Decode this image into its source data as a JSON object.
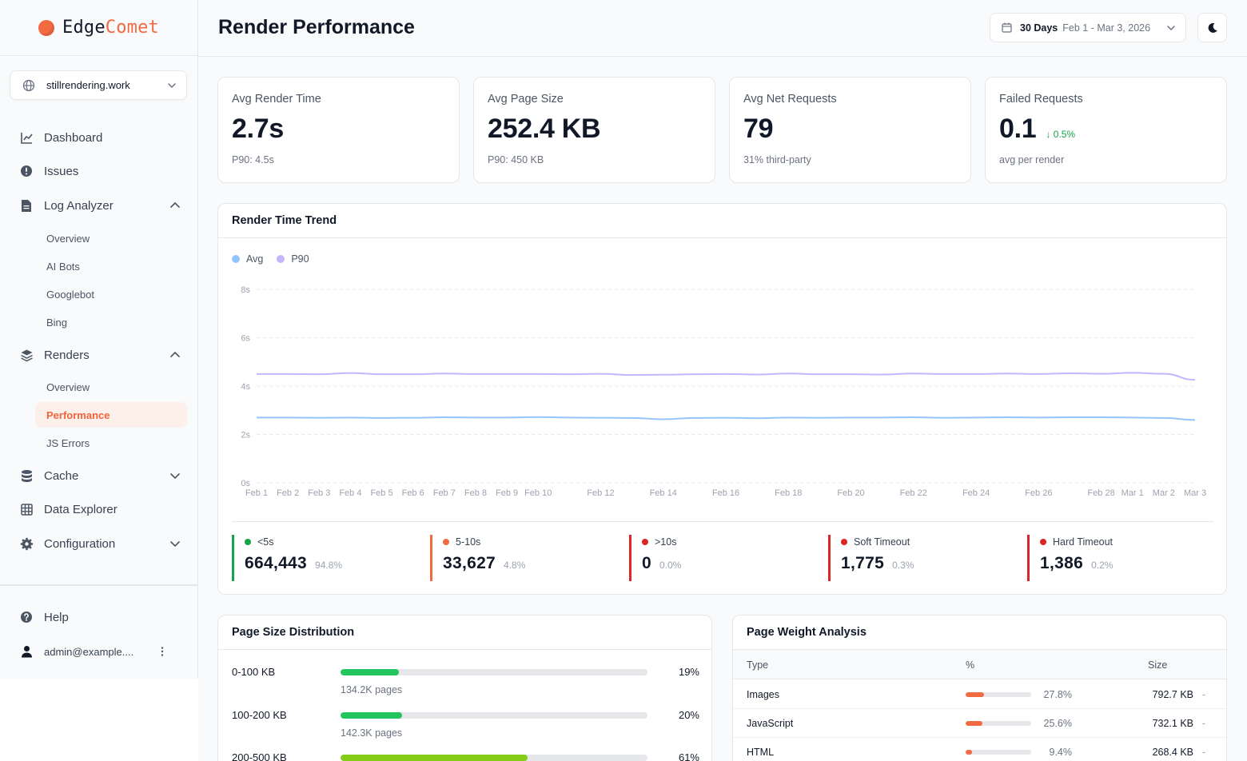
{
  "brand": {
    "part1": "Edge",
    "part2": "Comet"
  },
  "site_selector": {
    "value": "stillrendering.work"
  },
  "nav": {
    "dashboard": "Dashboard",
    "issues": "Issues",
    "log_analyzer": "Log Analyzer",
    "log_sub": [
      "Overview",
      "AI Bots",
      "Googlebot",
      "Bing"
    ],
    "renders": "Renders",
    "renders_sub": [
      "Overview",
      "Performance",
      "JS Errors"
    ],
    "cache": "Cache",
    "data_explorer": "Data Explorer",
    "configuration": "Configuration",
    "help": "Help",
    "user": "admin@example...."
  },
  "header": {
    "title": "Render Performance",
    "date_days": "30 Days",
    "date_range": "Feb 1 - Mar 3, 2026"
  },
  "kpis": [
    {
      "label": "Avg Render Time",
      "value": "2.7s",
      "sub": "P90: 4.5s",
      "delta": ""
    },
    {
      "label": "Avg Page Size",
      "value": "252.4 KB",
      "sub": "P90: 450 KB",
      "delta": ""
    },
    {
      "label": "Avg Net Requests",
      "value": "79",
      "sub": "31% third-party",
      "delta": ""
    },
    {
      "label": "Failed Requests",
      "value": "0.1",
      "sub": "avg per render",
      "delta": "↓ 0.5%"
    }
  ],
  "trend": {
    "title": "Render Time Trend",
    "legend": [
      "Avg",
      "P90"
    ]
  },
  "chart_data": {
    "type": "line",
    "title": "Render Time Trend",
    "xlabel": "",
    "ylabel": "",
    "ylim": [
      0,
      8
    ],
    "y_ticks": [
      "0s",
      "2s",
      "4s",
      "6s",
      "8s"
    ],
    "x": [
      "Feb 1",
      "Feb 2",
      "Feb 3",
      "Feb 4",
      "Feb 5",
      "Feb 6",
      "Feb 7",
      "Feb 8",
      "Feb 9",
      "Feb 10",
      "Feb 11",
      "Feb 12",
      "Feb 13",
      "Feb 14",
      "Feb 15",
      "Feb 16",
      "Feb 17",
      "Feb 18",
      "Feb 19",
      "Feb 20",
      "Feb 21",
      "Feb 22",
      "Feb 23",
      "Feb 24",
      "Feb 25",
      "Feb 26",
      "Feb 27",
      "Feb 28",
      "Mar 1",
      "Mar 2",
      "Mar 3"
    ],
    "x_tick_labels": [
      "Feb 1",
      "Feb 2",
      "Feb 3",
      "Feb 4",
      "Feb 5",
      "Feb 6",
      "Feb 7",
      "Feb 8",
      "Feb 9",
      "Feb 10",
      "Feb 12",
      "Feb 14",
      "Feb 16",
      "Feb 18",
      "Feb 20",
      "Feb 22",
      "Feb 24",
      "Feb 26",
      "Feb 28",
      "Mar 1",
      "Mar 2",
      "Mar 3"
    ],
    "series": [
      {
        "name": "Avg",
        "color": "#93c5fd",
        "values": [
          2.7,
          2.7,
          2.69,
          2.7,
          2.68,
          2.69,
          2.71,
          2.7,
          2.7,
          2.72,
          2.7,
          2.69,
          2.68,
          2.63,
          2.68,
          2.69,
          2.67,
          2.7,
          2.69,
          2.7,
          2.7,
          2.71,
          2.69,
          2.7,
          2.71,
          2.7,
          2.71,
          2.71,
          2.7,
          2.68,
          2.6
        ]
      },
      {
        "name": "P90",
        "color": "#c4b5fd",
        "values": [
          4.5,
          4.5,
          4.49,
          4.54,
          4.49,
          4.49,
          4.52,
          4.5,
          4.5,
          4.5,
          4.49,
          4.51,
          4.46,
          4.47,
          4.49,
          4.5,
          4.48,
          4.52,
          4.49,
          4.49,
          4.48,
          4.52,
          4.5,
          4.5,
          4.52,
          4.5,
          4.53,
          4.51,
          4.55,
          4.51,
          4.26
        ]
      }
    ]
  },
  "buckets": [
    {
      "label": "<5s",
      "value": "664,443",
      "pct": "94.8%",
      "color": "#16a34a"
    },
    {
      "label": "5-10s",
      "value": "33,627",
      "pct": "4.8%",
      "color": "#f26a42"
    },
    {
      "label": ">10s",
      "value": "0",
      "pct": "0.0%",
      "color": "#dc2626"
    },
    {
      "label": "Soft Timeout",
      "value": "1,775",
      "pct": "0.3%",
      "color": "#dc2626"
    },
    {
      "label": "Hard Timeout",
      "value": "1,386",
      "pct": "0.2%",
      "color": "#dc2626"
    }
  ],
  "page_size": {
    "title": "Page Size Distribution",
    "rows": [
      {
        "label": "0-100 KB",
        "pct": "19%",
        "fraction": 0.19,
        "sub": "134.2K pages",
        "color": "#22c55e"
      },
      {
        "label": "100-200 KB",
        "pct": "20%",
        "fraction": 0.2,
        "sub": "142.3K pages",
        "color": "#22c55e"
      },
      {
        "label": "200-500 KB",
        "pct": "61%",
        "fraction": 0.61,
        "sub": "",
        "color": "#84cc16"
      }
    ]
  },
  "page_weight": {
    "title": "Page Weight Analysis",
    "headers": [
      "Type",
      "%",
      "Size"
    ],
    "rows": [
      {
        "type": "Images",
        "pct": "27.8%",
        "fraction": 0.278,
        "size": "792.7 KB",
        "dash": "-"
      },
      {
        "type": "JavaScript",
        "pct": "25.6%",
        "fraction": 0.256,
        "size": "732.1 KB",
        "dash": "-"
      },
      {
        "type": "HTML",
        "pct": "9.4%",
        "fraction": 0.094,
        "size": "268.4 KB",
        "dash": "-"
      }
    ]
  }
}
